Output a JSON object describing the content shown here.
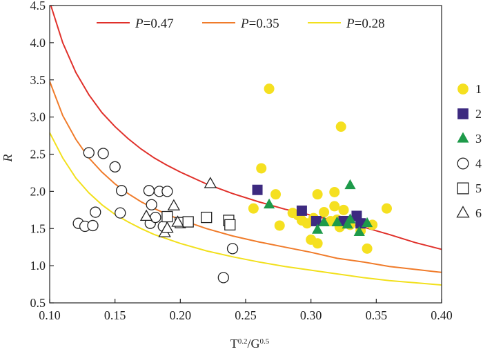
{
  "chart_data": {
    "type": "scatter",
    "xlabel": "T^0.2/G^0.5",
    "ylabel": "R",
    "xlim": [
      0.1,
      0.4
    ],
    "ylim": [
      0.5,
      4.5
    ],
    "x_ticks": [
      0.1,
      0.15,
      0.2,
      0.25,
      0.3,
      0.35,
      0.4
    ],
    "x_tick_labels": [
      "0.10",
      "0.15",
      "0.20",
      "0.25",
      "0.30",
      "0.35",
      "0.40"
    ],
    "y_ticks": [
      0.5,
      1.0,
      1.5,
      2.0,
      2.5,
      3.0,
      3.5,
      4.0,
      4.5
    ],
    "y_tick_labels": [
      "0.5",
      "1.0",
      "1.5",
      "2.0",
      "2.5",
      "3.0",
      "3.5",
      "4.0",
      "4.5"
    ],
    "grid": false,
    "curves": [
      {
        "name": "P=0.47",
        "p_label": "P",
        "value_label": "=0.47",
        "color": "#e0302a",
        "points": [
          [
            0.1,
            4.55
          ],
          [
            0.11,
            4.0
          ],
          [
            0.12,
            3.6
          ],
          [
            0.13,
            3.3
          ],
          [
            0.14,
            3.06
          ],
          [
            0.15,
            2.87
          ],
          [
            0.16,
            2.71
          ],
          [
            0.17,
            2.57
          ],
          [
            0.18,
            2.45
          ],
          [
            0.19,
            2.35
          ],
          [
            0.2,
            2.26
          ],
          [
            0.22,
            2.1
          ],
          [
            0.24,
            1.97
          ],
          [
            0.26,
            1.86
          ],
          [
            0.28,
            1.76
          ],
          [
            0.3,
            1.68
          ],
          [
            0.32,
            1.6
          ],
          [
            0.34,
            1.52
          ],
          [
            0.36,
            1.42
          ],
          [
            0.38,
            1.31
          ],
          [
            0.4,
            1.22
          ]
        ]
      },
      {
        "name": "P=0.35",
        "p_label": "P",
        "value_label": "=0.35",
        "color": "#f07b2a",
        "points": [
          [
            0.1,
            3.48
          ],
          [
            0.11,
            3.02
          ],
          [
            0.12,
            2.7
          ],
          [
            0.13,
            2.45
          ],
          [
            0.14,
            2.26
          ],
          [
            0.15,
            2.1
          ],
          [
            0.16,
            1.97
          ],
          [
            0.17,
            1.86
          ],
          [
            0.18,
            1.77
          ],
          [
            0.19,
            1.69
          ],
          [
            0.2,
            1.62
          ],
          [
            0.22,
            1.5
          ],
          [
            0.24,
            1.4
          ],
          [
            0.26,
            1.32
          ],
          [
            0.28,
            1.25
          ],
          [
            0.3,
            1.18
          ],
          [
            0.32,
            1.1
          ],
          [
            0.34,
            1.05
          ],
          [
            0.36,
            0.99
          ],
          [
            0.38,
            0.95
          ],
          [
            0.4,
            0.91
          ]
        ]
      },
      {
        "name": "P=0.28",
        "p_label": "P",
        "value_label": "=0.28",
        "color": "#f2e01c",
        "points": [
          [
            0.1,
            2.79
          ],
          [
            0.11,
            2.45
          ],
          [
            0.12,
            2.18
          ],
          [
            0.13,
            1.98
          ],
          [
            0.14,
            1.82
          ],
          [
            0.15,
            1.69
          ],
          [
            0.16,
            1.59
          ],
          [
            0.17,
            1.5
          ],
          [
            0.18,
            1.42
          ],
          [
            0.19,
            1.36
          ],
          [
            0.2,
            1.3
          ],
          [
            0.22,
            1.2
          ],
          [
            0.24,
            1.12
          ],
          [
            0.26,
            1.05
          ],
          [
            0.28,
            0.99
          ],
          [
            0.3,
            0.94
          ],
          [
            0.32,
            0.89
          ],
          [
            0.34,
            0.84
          ],
          [
            0.36,
            0.8
          ],
          [
            0.38,
            0.77
          ],
          [
            0.4,
            0.74
          ]
        ]
      }
    ],
    "series": [
      {
        "name": "1",
        "marker": "circle",
        "filled": true,
        "color": "#f5e020",
        "points": [
          [
            0.256,
            1.77
          ],
          [
            0.262,
            2.31
          ],
          [
            0.268,
            3.38
          ],
          [
            0.273,
            1.96
          ],
          [
            0.276,
            1.54
          ],
          [
            0.286,
            1.71
          ],
          [
            0.29,
            1.68
          ],
          [
            0.293,
            1.61
          ],
          [
            0.297,
            1.57
          ],
          [
            0.3,
            1.35
          ],
          [
            0.302,
            1.64
          ],
          [
            0.305,
            1.3
          ],
          [
            0.305,
            1.96
          ],
          [
            0.31,
            1.72
          ],
          [
            0.315,
            1.6
          ],
          [
            0.318,
            1.99
          ],
          [
            0.318,
            1.8
          ],
          [
            0.32,
            1.62
          ],
          [
            0.322,
            1.52
          ],
          [
            0.323,
            2.87
          ],
          [
            0.325,
            1.75
          ],
          [
            0.33,
            1.55
          ],
          [
            0.338,
            1.47
          ],
          [
            0.343,
            1.23
          ],
          [
            0.347,
            1.55
          ],
          [
            0.358,
            1.77
          ]
        ]
      },
      {
        "name": "2",
        "marker": "square",
        "filled": true,
        "color": "#3d2a80",
        "points": [
          [
            0.259,
            2.02
          ],
          [
            0.293,
            1.74
          ],
          [
            0.304,
            1.6
          ],
          [
            0.325,
            1.6
          ],
          [
            0.335,
            1.67
          ],
          [
            0.338,
            1.57
          ]
        ]
      },
      {
        "name": "3",
        "marker": "triangle",
        "filled": true,
        "color": "#1e9a4a",
        "points": [
          [
            0.268,
            1.82
          ],
          [
            0.305,
            1.48
          ],
          [
            0.31,
            1.58
          ],
          [
            0.32,
            1.58
          ],
          [
            0.328,
            1.55
          ],
          [
            0.33,
            2.08
          ],
          [
            0.33,
            1.62
          ],
          [
            0.337,
            1.45
          ],
          [
            0.343,
            1.57
          ]
        ]
      },
      {
        "name": "4",
        "marker": "circle",
        "filled": false,
        "color": "#222222",
        "points": [
          [
            0.122,
            1.57
          ],
          [
            0.127,
            1.53
          ],
          [
            0.13,
            2.52
          ],
          [
            0.133,
            1.54
          ],
          [
            0.135,
            1.72
          ],
          [
            0.141,
            2.51
          ],
          [
            0.15,
            2.33
          ],
          [
            0.154,
            1.71
          ],
          [
            0.155,
            2.01
          ],
          [
            0.176,
            2.01
          ],
          [
            0.177,
            1.57
          ],
          [
            0.178,
            1.82
          ],
          [
            0.181,
            1.65
          ],
          [
            0.184,
            2.0
          ],
          [
            0.187,
            1.53
          ],
          [
            0.19,
            2.0
          ],
          [
            0.233,
            0.84
          ],
          [
            0.24,
            1.23
          ]
        ]
      },
      {
        "name": "5",
        "marker": "square",
        "filled": false,
        "color": "#222222",
        "points": [
          [
            0.19,
            1.66
          ],
          [
            0.2,
            1.58
          ],
          [
            0.206,
            1.59
          ],
          [
            0.22,
            1.65
          ],
          [
            0.237,
            1.61
          ],
          [
            0.238,
            1.55
          ]
        ]
      },
      {
        "name": "6",
        "marker": "triangle",
        "filled": false,
        "color": "#222222",
        "points": [
          [
            0.174,
            1.66
          ],
          [
            0.188,
            1.44
          ],
          [
            0.19,
            1.5
          ],
          [
            0.195,
            1.8
          ],
          [
            0.198,
            1.58
          ],
          [
            0.223,
            2.1
          ]
        ]
      }
    ],
    "legend_placement": "top (curves), right (markers)"
  }
}
